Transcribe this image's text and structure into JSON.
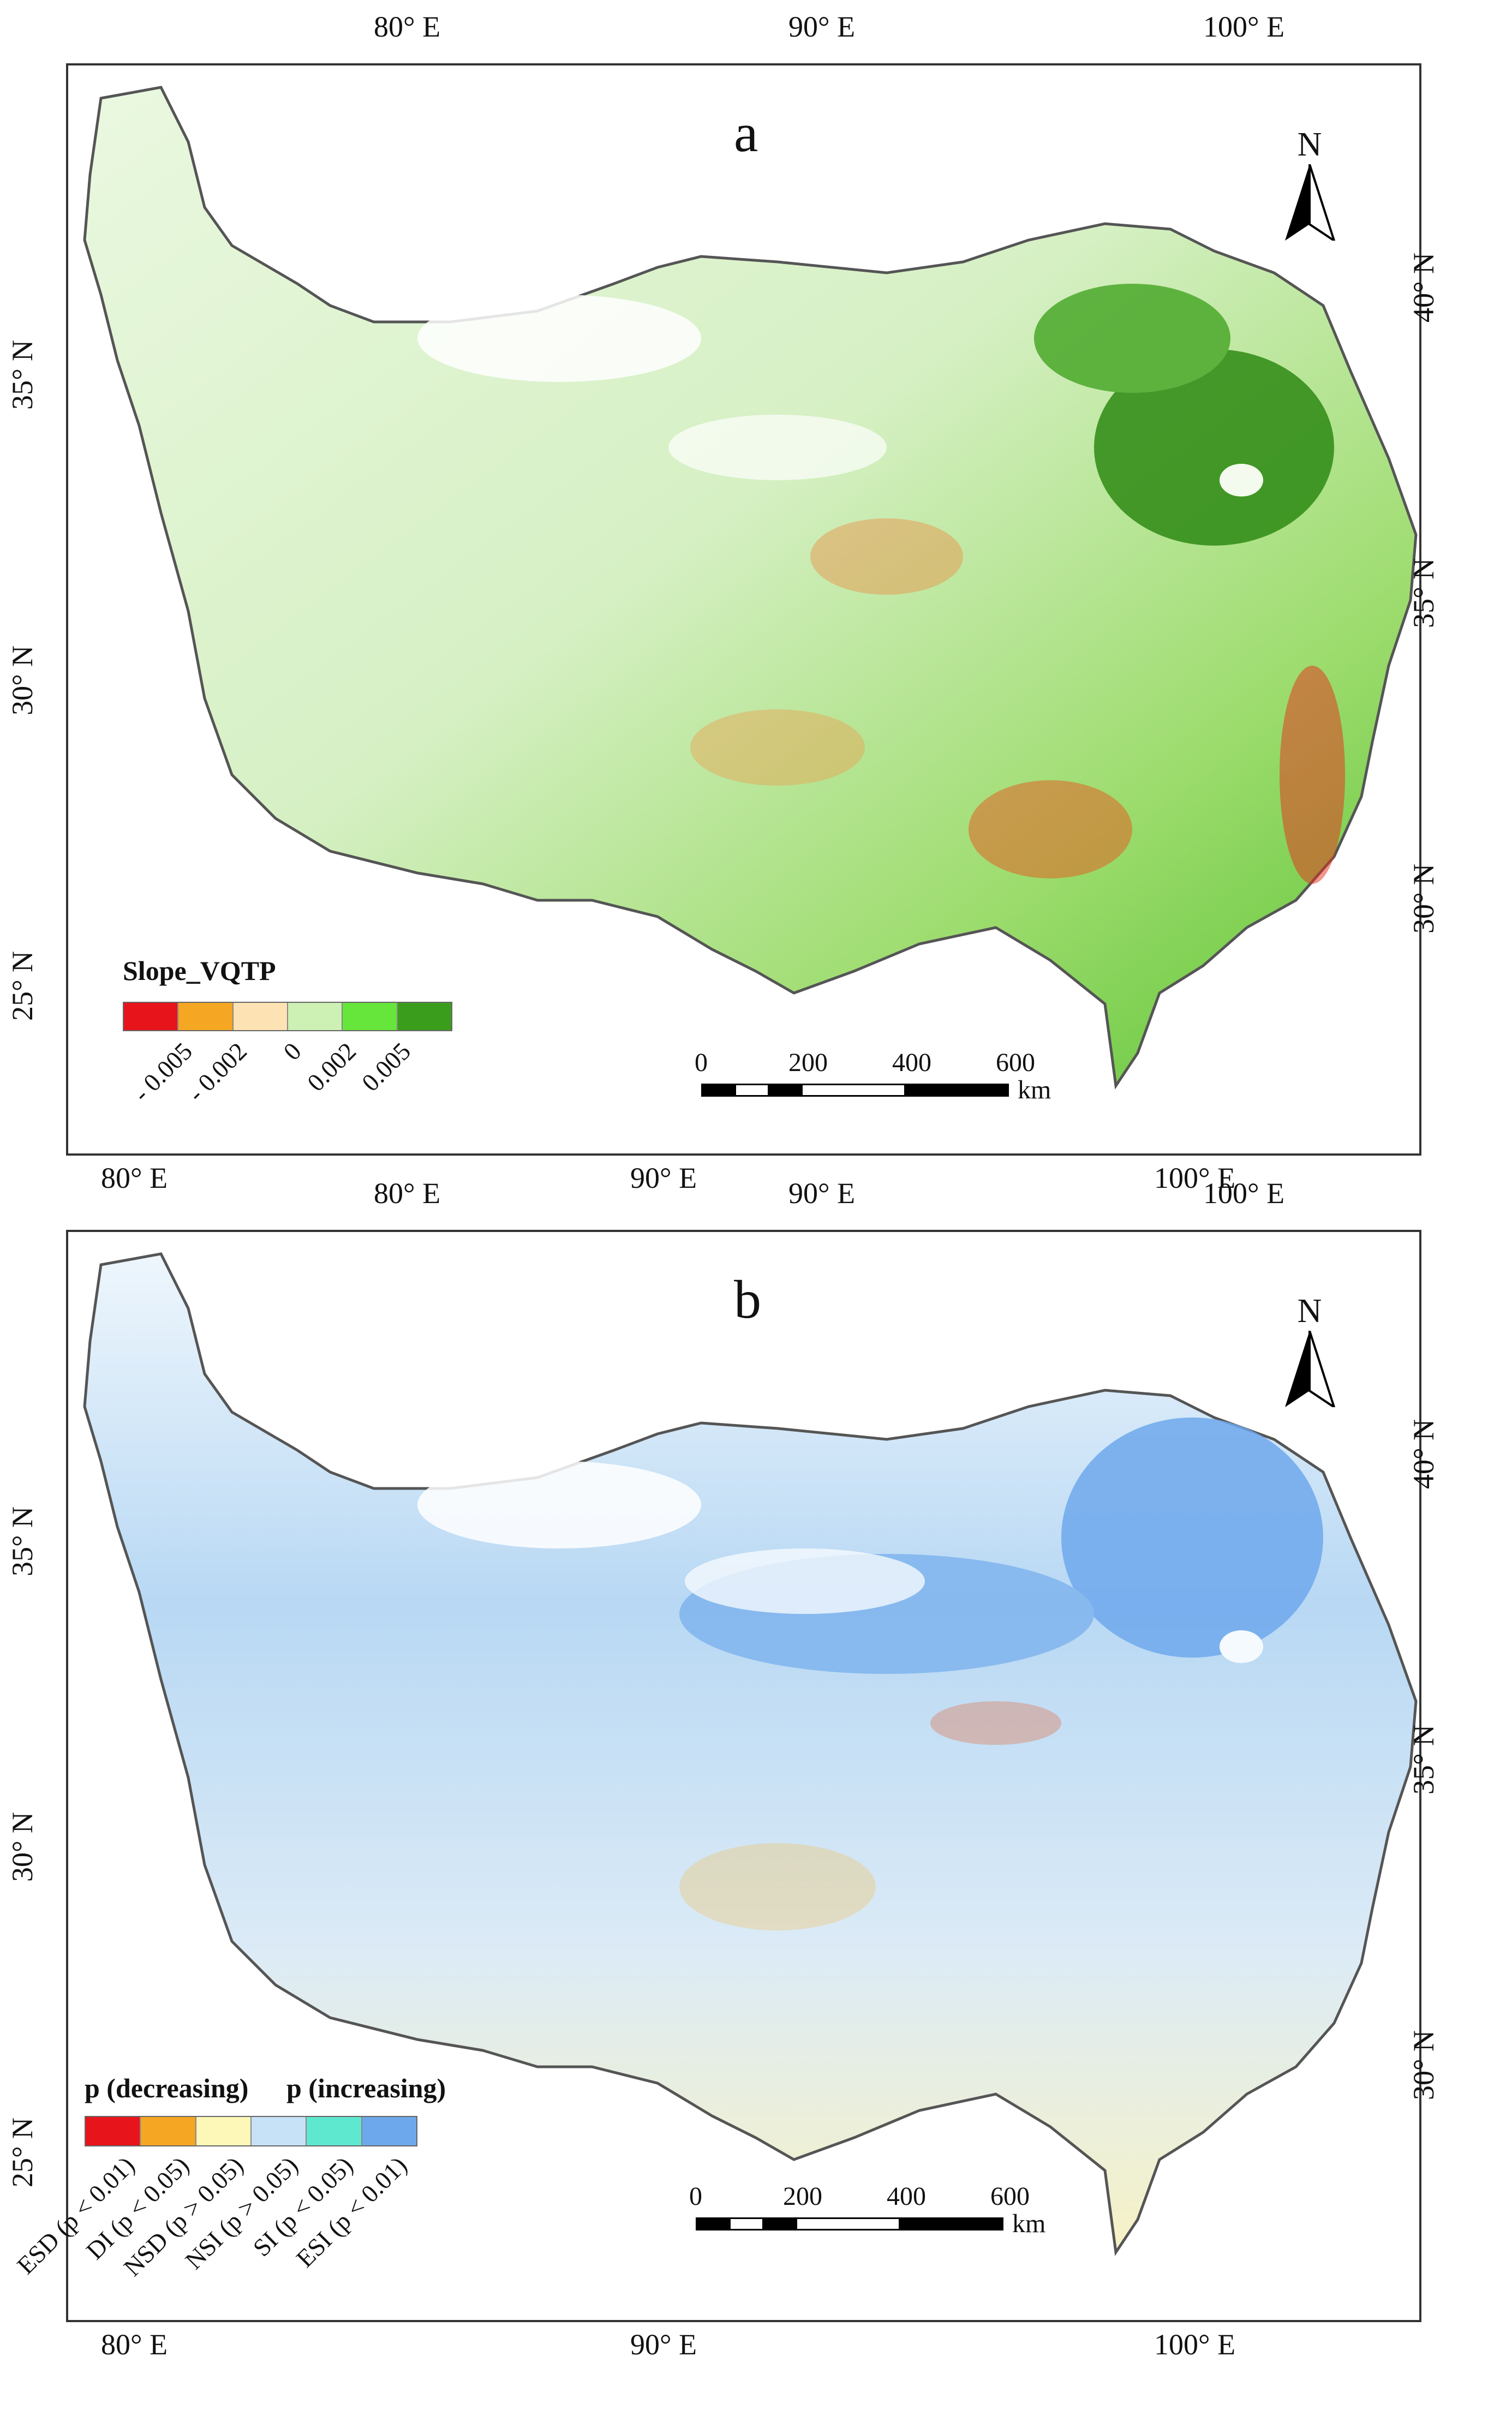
{
  "panels": [
    {
      "id": "a",
      "label": "a",
      "top_lon_labels": [
        "80° E",
        "90° E",
        "100° E"
      ],
      "bottom_lon_labels": [
        "80° E",
        "90° E",
        "100° E"
      ],
      "left_lat_labels": [
        "35° N",
        "30° N",
        "25° N"
      ],
      "right_lat_labels": [
        "40° N",
        "35° N",
        "30° N"
      ],
      "north": "N",
      "legend": {
        "title": "Slope_VQTP",
        "colors": [
          "#e8141c",
          "#f5a623",
          "#fde3b3",
          "#cdf0b4",
          "#66e63a",
          "#3a9e1c"
        ],
        "ticks": [
          "- 0.005",
          "- 0.002",
          "0",
          "0.002",
          "0.005"
        ]
      },
      "scale": {
        "labels": [
          "0",
          "200",
          "400",
          "600"
        ],
        "unit": "km"
      }
    },
    {
      "id": "b",
      "label": "b",
      "top_lon_labels": [
        "80° E",
        "90° E",
        "100° E"
      ],
      "bottom_lon_labels": [
        "80° E",
        "90° E",
        "100° E"
      ],
      "left_lat_labels": [
        "35° N",
        "30° N",
        "25° N"
      ],
      "right_lat_labels": [
        "40° N",
        "35° N",
        "30° N"
      ],
      "north": "N",
      "legend": {
        "title_decreasing": "p (decreasing)",
        "title_increasing": "p (increasing)",
        "colors": [
          "#e8141c",
          "#f5a623",
          "#fdf7b8",
          "#c7e2f7",
          "#5ee8d0",
          "#6ea8ec"
        ],
        "ticks": [
          "ESD (p < 0.01)",
          "DI (p < 0.05)",
          "NSD (p > 0.05)",
          "NSI (p > 0.05)",
          "SI (p < 0.05)",
          "ESI (p < 0.01)"
        ]
      },
      "scale": {
        "labels": [
          "0",
          "200",
          "400",
          "600"
        ],
        "unit": "km"
      }
    }
  ]
}
